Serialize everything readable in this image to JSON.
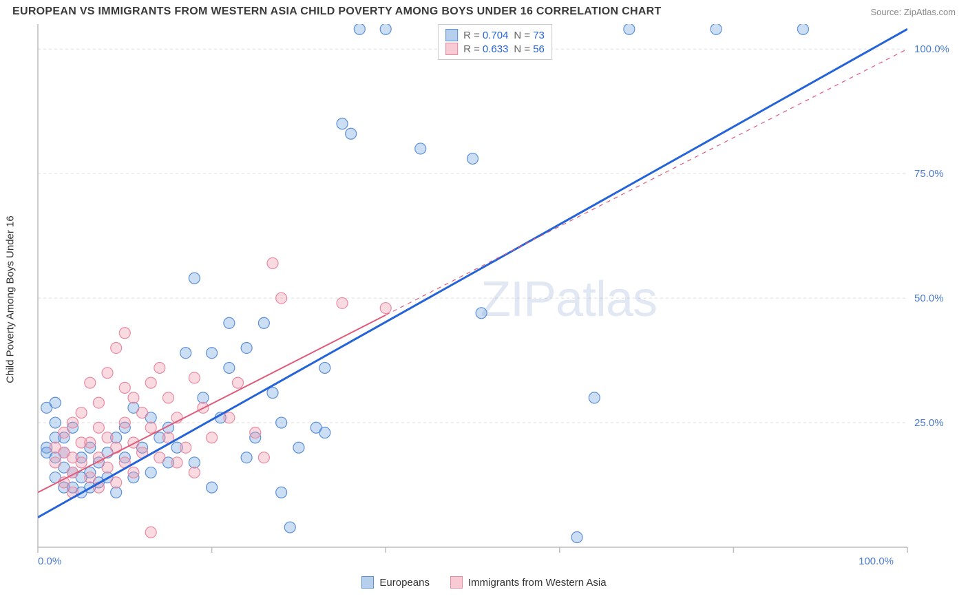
{
  "header": {
    "title": "EUROPEAN VS IMMIGRANTS FROM WESTERN ASIA CHILD POVERTY AMONG BOYS UNDER 16 CORRELATION CHART",
    "source": "Source: ZipAtlas.com"
  },
  "chart": {
    "type": "scatter",
    "ylabel": "Child Poverty Among Boys Under 16",
    "watermark": "ZIPatlas",
    "xlim": [
      0,
      100
    ],
    "ylim": [
      0,
      105
    ],
    "xtick_values": [
      0,
      20,
      40,
      60,
      80,
      100
    ],
    "xtick_labels": [
      "0.0%",
      "",
      "",
      "",
      "",
      "100.0%"
    ],
    "ytick_values": [
      25,
      50,
      75,
      100
    ],
    "ytick_labels": [
      "25.0%",
      "50.0%",
      "75.0%",
      "100.0%"
    ],
    "grid_color": "#dddddd",
    "axis_color": "#bbbbbb",
    "tick_label_color": "#4a7bd0",
    "background_color": "#ffffff",
    "marker_radius": 8,
    "series": [
      {
        "name": "Europeans",
        "label": "Europeans",
        "fill_color": "rgba(110,160,220,0.35)",
        "stroke_color": "#5b8fd6",
        "swatch_fill": "rgba(110,160,220,0.5)",
        "swatch_stroke": "#5b8fd6",
        "R": "0.704",
        "N": "73",
        "trend": {
          "x1": 0,
          "y1": 6,
          "x2": 100,
          "y2": 104,
          "solid_until_x": 100,
          "color": "#2563d9",
          "width": 3
        },
        "points": [
          [
            1,
            28
          ],
          [
            1,
            20
          ],
          [
            1,
            19
          ],
          [
            2,
            29
          ],
          [
            2,
            22
          ],
          [
            2,
            18
          ],
          [
            2,
            25
          ],
          [
            2,
            14
          ],
          [
            3,
            12
          ],
          [
            3,
            16
          ],
          [
            3,
            19
          ],
          [
            3,
            22
          ],
          [
            4,
            24
          ],
          [
            4,
            15
          ],
          [
            4,
            12
          ],
          [
            5,
            11
          ],
          [
            5,
            14
          ],
          [
            5,
            18
          ],
          [
            6,
            12
          ],
          [
            6,
            15
          ],
          [
            6,
            20
          ],
          [
            7,
            17
          ],
          [
            7,
            13
          ],
          [
            8,
            14
          ],
          [
            8,
            19
          ],
          [
            9,
            11
          ],
          [
            9,
            22
          ],
          [
            10,
            18
          ],
          [
            10,
            24
          ],
          [
            11,
            14
          ],
          [
            11,
            28
          ],
          [
            12,
            20
          ],
          [
            13,
            15
          ],
          [
            13,
            26
          ],
          [
            14,
            22
          ],
          [
            15,
            17
          ],
          [
            15,
            24
          ],
          [
            16,
            20
          ],
          [
            17,
            39
          ],
          [
            18,
            17
          ],
          [
            18,
            54
          ],
          [
            19,
            30
          ],
          [
            20,
            12
          ],
          [
            20,
            39
          ],
          [
            21,
            26
          ],
          [
            22,
            36
          ],
          [
            22,
            45
          ],
          [
            24,
            18
          ],
          [
            24,
            40
          ],
          [
            25,
            22
          ],
          [
            26,
            45
          ],
          [
            27,
            31
          ],
          [
            28,
            11
          ],
          [
            28,
            25
          ],
          [
            29,
            4
          ],
          [
            30,
            20
          ],
          [
            32,
            24
          ],
          [
            33,
            23
          ],
          [
            33,
            36
          ],
          [
            35,
            85
          ],
          [
            36,
            83
          ],
          [
            37,
            104
          ],
          [
            40,
            104
          ],
          [
            44,
            80
          ],
          [
            48,
            104
          ],
          [
            50,
            78
          ],
          [
            51,
            47
          ],
          [
            52,
            104
          ],
          [
            62,
            2
          ],
          [
            64,
            30
          ],
          [
            68,
            104
          ],
          [
            78,
            104
          ],
          [
            88,
            104
          ]
        ]
      },
      {
        "name": "Immigrants from Western Asia",
        "label": "Immigrants from Western Asia",
        "fill_color": "rgba(240,150,170,0.35)",
        "stroke_color": "#e88aa2",
        "swatch_fill": "rgba(240,150,170,0.5)",
        "swatch_stroke": "#e88aa2",
        "R": "0.633",
        "N": "56",
        "trend": {
          "x1": 0,
          "y1": 11,
          "x2": 100,
          "y2": 100,
          "solid_until_x": 40,
          "color": "#e05a7a",
          "width": 2
        },
        "points": [
          [
            2,
            17
          ],
          [
            2,
            20
          ],
          [
            3,
            13
          ],
          [
            3,
            19
          ],
          [
            3,
            23
          ],
          [
            4,
            11
          ],
          [
            4,
            15
          ],
          [
            4,
            18
          ],
          [
            4,
            25
          ],
          [
            5,
            17
          ],
          [
            5,
            21
          ],
          [
            5,
            27
          ],
          [
            6,
            14
          ],
          [
            6,
            21
          ],
          [
            6,
            33
          ],
          [
            7,
            12
          ],
          [
            7,
            18
          ],
          [
            7,
            24
          ],
          [
            7,
            29
          ],
          [
            8,
            16
          ],
          [
            8,
            22
          ],
          [
            8,
            35
          ],
          [
            9,
            13
          ],
          [
            9,
            20
          ],
          [
            9,
            40
          ],
          [
            10,
            17
          ],
          [
            10,
            25
          ],
          [
            10,
            32
          ],
          [
            10,
            43
          ],
          [
            11,
            15
          ],
          [
            11,
            21
          ],
          [
            11,
            30
          ],
          [
            12,
            19
          ],
          [
            12,
            27
          ],
          [
            13,
            3
          ],
          [
            13,
            24
          ],
          [
            13,
            33
          ],
          [
            14,
            18
          ],
          [
            14,
            36
          ],
          [
            15,
            22
          ],
          [
            15,
            30
          ],
          [
            16,
            17
          ],
          [
            16,
            26
          ],
          [
            17,
            20
          ],
          [
            18,
            15
          ],
          [
            18,
            34
          ],
          [
            19,
            28
          ],
          [
            20,
            22
          ],
          [
            22,
            26
          ],
          [
            23,
            33
          ],
          [
            25,
            23
          ],
          [
            26,
            18
          ],
          [
            27,
            57
          ],
          [
            28,
            50
          ],
          [
            35,
            49
          ],
          [
            40,
            48
          ]
        ]
      }
    ]
  }
}
